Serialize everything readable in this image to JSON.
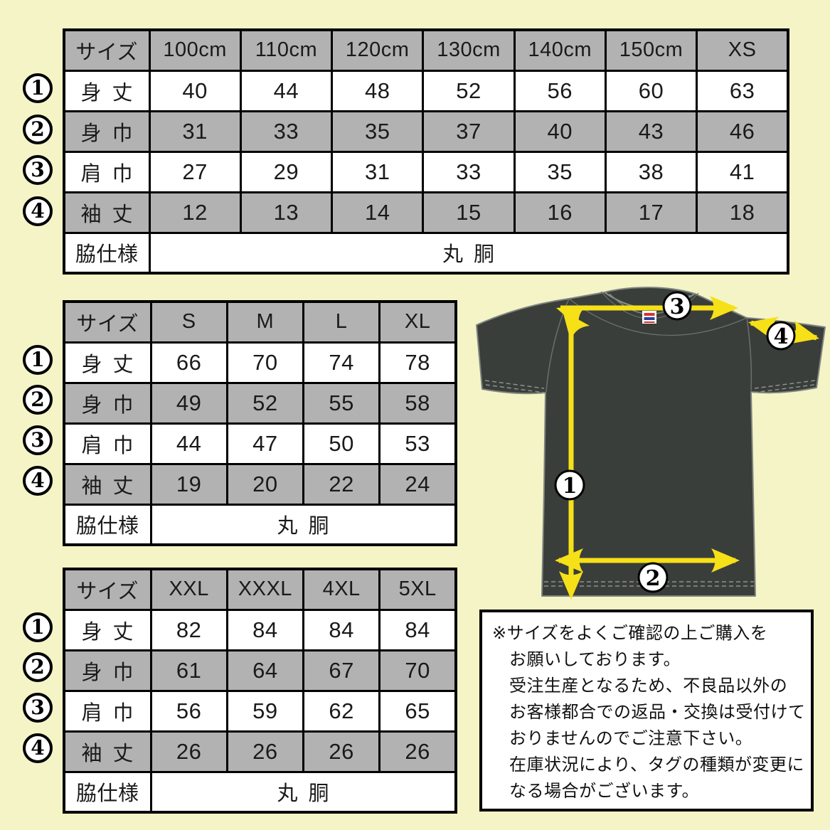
{
  "colors": {
    "background": "#f4f4c6",
    "table_header_gray": "#b2b2b2",
    "arrow_yellow": "#f6e017",
    "shirt_charcoal": "#3a3e3b"
  },
  "markers": [
    "1",
    "2",
    "3",
    "4"
  ],
  "tables": [
    {
      "name": "kids-sizes",
      "header": [
        "サイズ",
        "100cm",
        "110cm",
        "120cm",
        "130cm",
        "140cm",
        "150cm",
        "XS"
      ],
      "rows": [
        {
          "marker": "1",
          "label": "身 丈",
          "values": [
            "40",
            "44",
            "48",
            "52",
            "56",
            "60",
            "63"
          ]
        },
        {
          "marker": "2",
          "label": "身 巾",
          "values": [
            "31",
            "33",
            "35",
            "37",
            "40",
            "43",
            "46"
          ]
        },
        {
          "marker": "3",
          "label": "肩 巾",
          "values": [
            "27",
            "29",
            "31",
            "33",
            "35",
            "38",
            "41"
          ]
        },
        {
          "marker": "4",
          "label": "袖 丈",
          "values": [
            "12",
            "13",
            "14",
            "15",
            "16",
            "17",
            "18"
          ]
        }
      ],
      "footer": {
        "label": "脇仕様",
        "value": "丸 胴"
      }
    },
    {
      "name": "adult-sizes",
      "header": [
        "サイズ",
        "S",
        "M",
        "L",
        "XL"
      ],
      "rows": [
        {
          "marker": "1",
          "label": "身 丈",
          "values": [
            "66",
            "70",
            "74",
            "78"
          ]
        },
        {
          "marker": "2",
          "label": "身 巾",
          "values": [
            "49",
            "52",
            "55",
            "58"
          ]
        },
        {
          "marker": "3",
          "label": "肩 巾",
          "values": [
            "44",
            "47",
            "50",
            "53"
          ]
        },
        {
          "marker": "4",
          "label": "袖 丈",
          "values": [
            "19",
            "20",
            "22",
            "24"
          ]
        }
      ],
      "footer": {
        "label": "脇仕様",
        "value": "丸 胴"
      }
    },
    {
      "name": "plus-sizes",
      "header": [
        "サイズ",
        "XXL",
        "XXXL",
        "4XL",
        "5XL"
      ],
      "rows": [
        {
          "marker": "1",
          "label": "身 丈",
          "values": [
            "82",
            "84",
            "84",
            "84"
          ]
        },
        {
          "marker": "2",
          "label": "身 巾",
          "values": [
            "61",
            "64",
            "67",
            "70"
          ]
        },
        {
          "marker": "3",
          "label": "肩 巾",
          "values": [
            "56",
            "59",
            "62",
            "65"
          ]
        },
        {
          "marker": "4",
          "label": "袖 丈",
          "values": [
            "26",
            "26",
            "26",
            "26"
          ]
        }
      ],
      "footer": {
        "label": "脇仕様",
        "value": "丸 胴"
      }
    }
  ],
  "note": {
    "lines": [
      "※サイズをよくご確認の上ご購入を",
      "お願いしております。",
      "受注生産となるため、不良品以外の",
      "お客様都合での返品・交換は受付けて",
      "おりませんのでご注意下さい。",
      "在庫状況により、タグの種類が変更に",
      "なる場合がございます。"
    ]
  }
}
